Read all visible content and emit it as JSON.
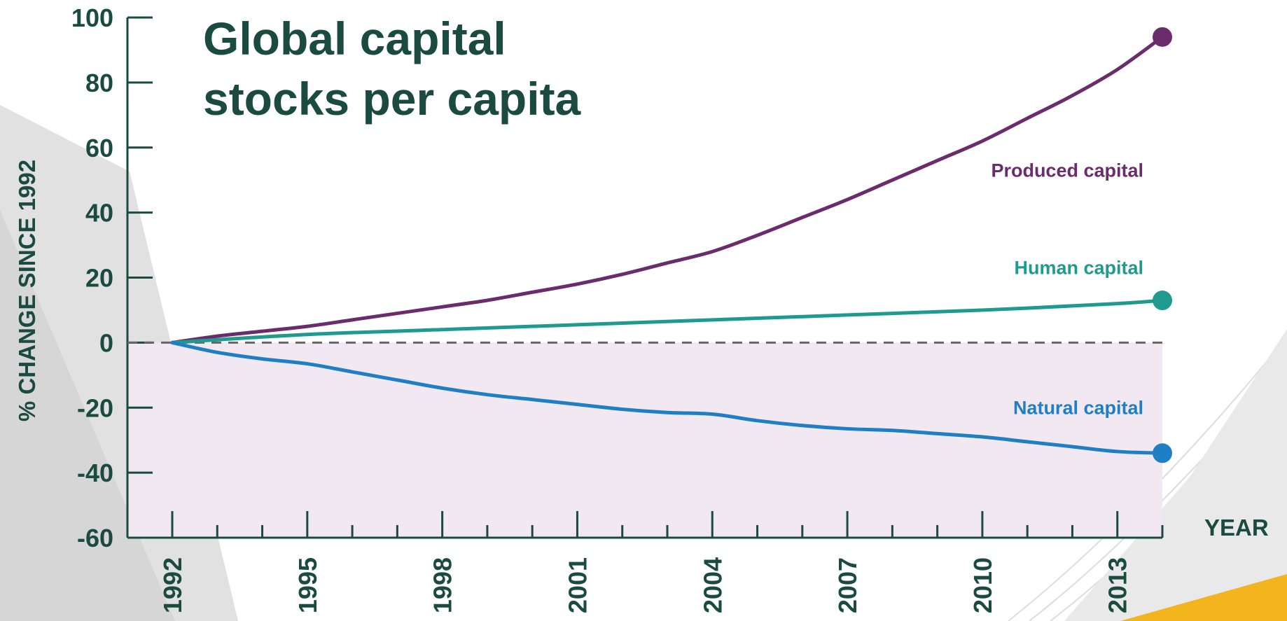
{
  "chart_data": {
    "type": "line",
    "title_lines": [
      "Global capital",
      "stocks per capita"
    ],
    "xlabel": "YEAR",
    "ylabel": "% CHANGE SINCE 1992",
    "ylim": [
      -60,
      100
    ],
    "xlim": [
      1992,
      2014
    ],
    "yticks": [
      "100",
      "80",
      "60",
      "40",
      "20",
      "0",
      "-20",
      "-40",
      "-60"
    ],
    "yticks_values": [
      100,
      80,
      60,
      40,
      20,
      0,
      -20,
      -40,
      -60
    ],
    "xticks": [
      "1992",
      "1995",
      "1998",
      "2001",
      "2004",
      "2007",
      "2010",
      "2013"
    ],
    "xticks_values": [
      1992,
      1995,
      1998,
      2001,
      2004,
      2007,
      2010,
      2013
    ],
    "grid": false,
    "zero_line": "dashed",
    "negative_region_shaded": true,
    "series": [
      {
        "name": "Produced capital",
        "color": "#6b2c6e",
        "x": [
          1992,
          1993,
          1994,
          1995,
          1996,
          1997,
          1998,
          1999,
          2000,
          2001,
          2002,
          2003,
          2004,
          2005,
          2006,
          2007,
          2008,
          2009,
          2010,
          2011,
          2012,
          2013,
          2014
        ],
        "values": [
          0,
          2,
          3.5,
          5,
          7,
          9,
          11,
          13,
          15.5,
          18,
          21,
          24.5,
          28,
          33,
          38.5,
          44,
          50,
          56,
          62,
          69,
          76,
          84,
          94
        ]
      },
      {
        "name": "Human capital",
        "color": "#1f9a8f",
        "x": [
          1992,
          1995,
          1998,
          2001,
          2004,
          2007,
          2010,
          2013,
          2014
        ],
        "values": [
          0,
          2.5,
          4,
          5.5,
          7,
          8.5,
          10,
          12,
          13
        ]
      },
      {
        "name": "Natural capital",
        "color": "#1f7fc4",
        "x": [
          1992,
          1993,
          1994,
          1995,
          1996,
          1997,
          1998,
          1999,
          2000,
          2001,
          2002,
          2003,
          2004,
          2005,
          2006,
          2007,
          2008,
          2009,
          2010,
          2011,
          2012,
          2013,
          2014
        ],
        "values": [
          0,
          -3,
          -5,
          -6.5,
          -9,
          -11.5,
          -14,
          -16,
          -17.5,
          -19,
          -20.5,
          -21.5,
          -22,
          -24,
          -25.5,
          -26.5,
          -27,
          -28,
          -29,
          -30.5,
          -32,
          -33.5,
          -34
        ]
      }
    ],
    "colors": {
      "title": "#1a4a40",
      "axis": "#1a4a40",
      "shade": "#f1e8f1",
      "zero_line": "#666666",
      "background_gray": "#d6d6d6",
      "accent_yellow": "#f2b51e"
    }
  }
}
